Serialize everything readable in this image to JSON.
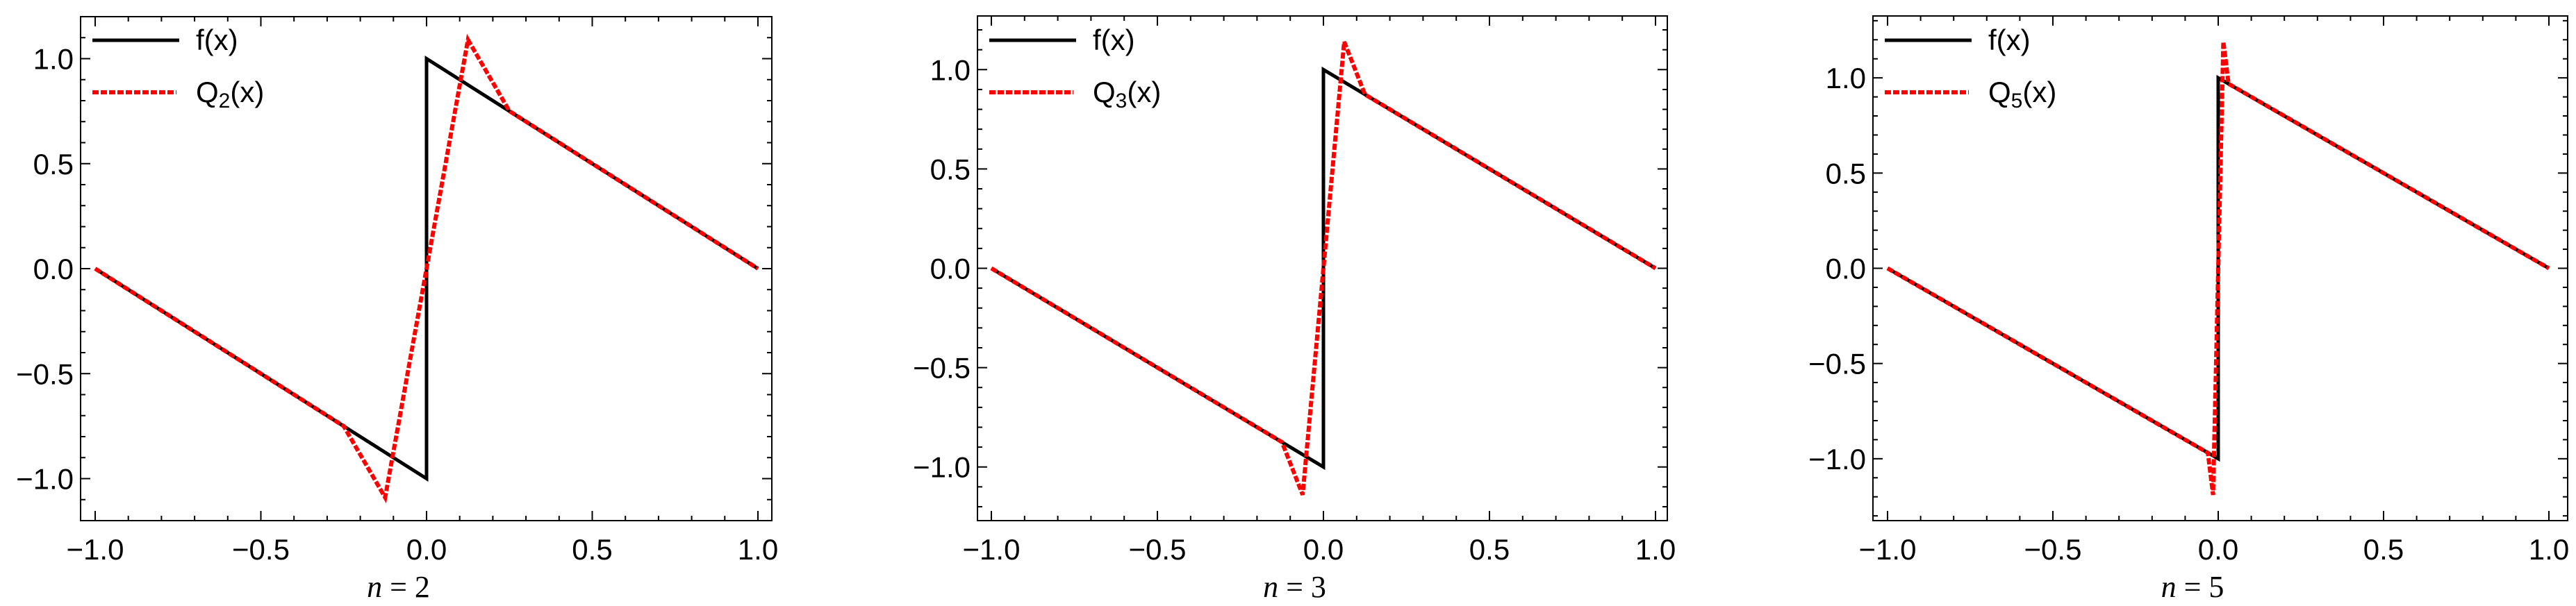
{
  "figure": {
    "panel_count": 3,
    "colors": {
      "f": "#000000",
      "Q": "#ff0000",
      "frame": "#000000",
      "background": "#ffffff"
    }
  },
  "chart_data": [
    {
      "type": "line",
      "title": "",
      "xlabel": "n = 2",
      "ylabel": "",
      "xlim": [
        -1.0,
        1.0
      ],
      "ylim": [
        -1.2,
        1.2
      ],
      "grid": false,
      "legend_position": "upper-left-inside",
      "xticks": [
        "-1.0",
        "-0.5",
        "0.0",
        "0.5",
        "1.0"
      ],
      "yticks": [
        "-1.0",
        "-0.5",
        "0.0",
        "0.5",
        "1.0"
      ],
      "series": [
        {
          "name": "f(x)",
          "legend_main": "f(x)",
          "legend_sub": "",
          "legend_tail": "",
          "style": "solid",
          "color": "#000000",
          "points": [
            [
              -1,
              0
            ],
            [
              0,
              -1
            ],
            [
              0,
              1
            ],
            [
              1,
              0
            ]
          ]
        },
        {
          "name": "Q2(x)",
          "legend_main": "Q",
          "legend_sub": "2",
          "legend_tail": "(x)",
          "style": "dashed",
          "color": "#ff0000",
          "points": [
            [
              -1,
              0
            ],
            [
              -0.25,
              -0.75
            ],
            [
              -0.125,
              -1.09
            ],
            [
              0,
              0
            ],
            [
              0.125,
              1.09
            ],
            [
              0.25,
              0.75
            ],
            [
              1,
              0
            ]
          ]
        }
      ]
    },
    {
      "type": "line",
      "title": "",
      "xlabel": "n = 3",
      "ylabel": "",
      "xlim": [
        -1.0,
        1.0
      ],
      "ylim": [
        -1.27,
        1.27
      ],
      "grid": false,
      "legend_position": "upper-left-inside",
      "xticks": [
        "-1.0",
        "-0.5",
        "0.0",
        "0.5",
        "1.0"
      ],
      "yticks": [
        "-1.0",
        "-0.5",
        "0.0",
        "0.5",
        "1.0"
      ],
      "series": [
        {
          "name": "f(x)",
          "legend_main": "f(x)",
          "legend_sub": "",
          "legend_tail": "",
          "style": "solid",
          "color": "#000000",
          "points": [
            [
              -1,
              0
            ],
            [
              0,
              -1
            ],
            [
              0,
              1
            ],
            [
              1,
              0
            ]
          ]
        },
        {
          "name": "Q3(x)",
          "legend_main": "Q",
          "legend_sub": "3",
          "legend_tail": "(x)",
          "style": "dashed",
          "color": "#ff0000",
          "points": [
            [
              -1,
              0
            ],
            [
              -0.125,
              -0.875
            ],
            [
              -0.0625,
              -1.14
            ],
            [
              0,
              0
            ],
            [
              0.0625,
              1.14
            ],
            [
              0.125,
              0.875
            ],
            [
              1,
              0
            ]
          ]
        }
      ]
    },
    {
      "type": "line",
      "title": "",
      "xlabel": "n = 5",
      "ylabel": "",
      "xlim": [
        -1.0,
        1.0
      ],
      "ylim": [
        -1.325,
        1.325
      ],
      "grid": false,
      "legend_position": "upper-left-inside",
      "xticks": [
        "-1.0",
        "-0.5",
        "0.0",
        "0.5",
        "1.0"
      ],
      "yticks": [
        "-1.0",
        "-0.5",
        "0.0",
        "0.5",
        "1.0"
      ],
      "series": [
        {
          "name": "f(x)",
          "legend_main": "f(x)",
          "legend_sub": "",
          "legend_tail": "",
          "style": "solid",
          "color": "#000000",
          "points": [
            [
              -1,
              0
            ],
            [
              0,
              -1
            ],
            [
              0,
              1
            ],
            [
              1,
              0
            ]
          ]
        },
        {
          "name": "Q5(x)",
          "legend_main": "Q",
          "legend_sub": "5",
          "legend_tail": "(x)",
          "style": "dashed",
          "color": "#ff0000",
          "points": [
            [
              -1,
              0
            ],
            [
              -0.03125,
              -0.969
            ],
            [
              -0.0156,
              -1.19
            ],
            [
              0,
              0
            ],
            [
              0.0156,
              1.19
            ],
            [
              0.03125,
              0.969
            ],
            [
              1,
              0
            ]
          ]
        }
      ]
    }
  ],
  "panels": [
    {
      "label_var": "n",
      "label_eq": " = ",
      "label_val": "2",
      "legend": {
        "f": "f(x)",
        "q_main": "Q",
        "q_sub": "2",
        "q_tail": "(x)"
      }
    },
    {
      "label_var": "n",
      "label_eq": " = ",
      "label_val": "3",
      "legend": {
        "f": "f(x)",
        "q_main": "Q",
        "q_sub": "3",
        "q_tail": "(x)"
      }
    },
    {
      "label_var": "n",
      "label_eq": " = ",
      "label_val": "5",
      "legend": {
        "f": "f(x)",
        "q_main": "Q",
        "q_sub": "5",
        "q_tail": "(x)"
      }
    }
  ]
}
